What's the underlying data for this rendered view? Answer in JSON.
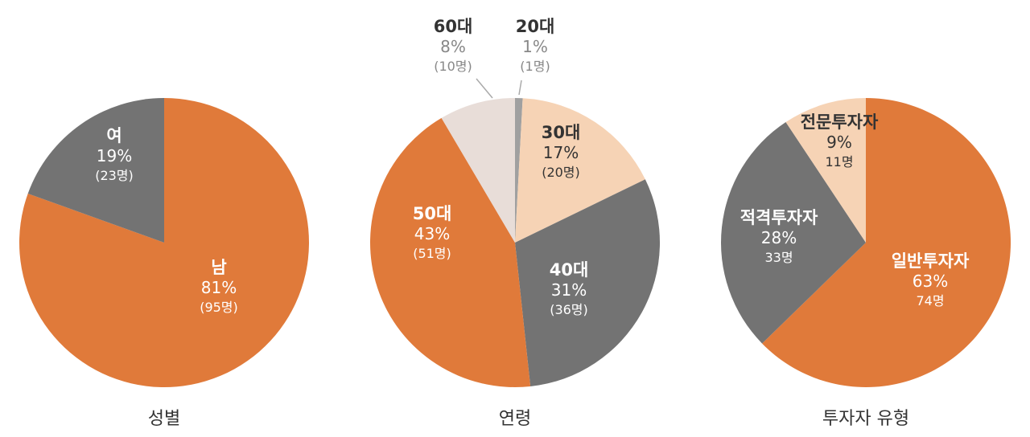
{
  "colors": {
    "orange": "#e07a3a",
    "gray": "#737373",
    "peach": "#f6d3b5",
    "beige": "#e8ddd8",
    "lightgray": "#a0a0a0",
    "label_dark": "#333333",
    "label_light": "#ffffff",
    "label_muted": "#888888"
  },
  "chart_data": [
    {
      "type": "pie",
      "title": "성별",
      "slices": [
        {
          "label": "남",
          "percent": "81%",
          "count": "(95명)",
          "value": 95,
          "color": "orange",
          "text_color": "label_light"
        },
        {
          "label": "여",
          "percent": "19%",
          "count": "(23명)",
          "value": 23,
          "color": "gray",
          "text_color": "label_light"
        }
      ],
      "start": "top",
      "direction": "clockwise"
    },
    {
      "type": "pie",
      "title": "연령",
      "slices": [
        {
          "label": "20대",
          "percent": "1%",
          "count": "(1명)",
          "value": 1,
          "color": "lightgray",
          "text_color": "label_dark"
        },
        {
          "label": "30대",
          "percent": "17%",
          "count": "(20명)",
          "value": 20,
          "color": "peach",
          "text_color": "label_dark"
        },
        {
          "label": "40대",
          "percent": "31%",
          "count": "(36명)",
          "value": 36,
          "color": "gray",
          "text_color": "label_light"
        },
        {
          "label": "50대",
          "percent": "43%",
          "count": "(51명)",
          "value": 51,
          "color": "orange",
          "text_color": "label_light"
        },
        {
          "label": "60대",
          "percent": "8%",
          "count": "(10명)",
          "value": 10,
          "color": "beige",
          "text_color": "label_dark"
        }
      ],
      "start": "top",
      "direction": "clockwise"
    },
    {
      "type": "pie",
      "title": "투자자 유형",
      "slices": [
        {
          "label": "일반투자자",
          "percent": "63%",
          "count": "74명",
          "value": 74,
          "color": "orange",
          "text_color": "label_light"
        },
        {
          "label": "적격투자자",
          "percent": "28%",
          "count": "33명",
          "value": 33,
          "color": "gray",
          "text_color": "label_light"
        },
        {
          "label": "전문투자자",
          "percent": "9%",
          "count": "11명",
          "value": 11,
          "color": "peach",
          "text_color": "label_dark"
        }
      ],
      "start": "top",
      "direction": "clockwise"
    }
  ]
}
